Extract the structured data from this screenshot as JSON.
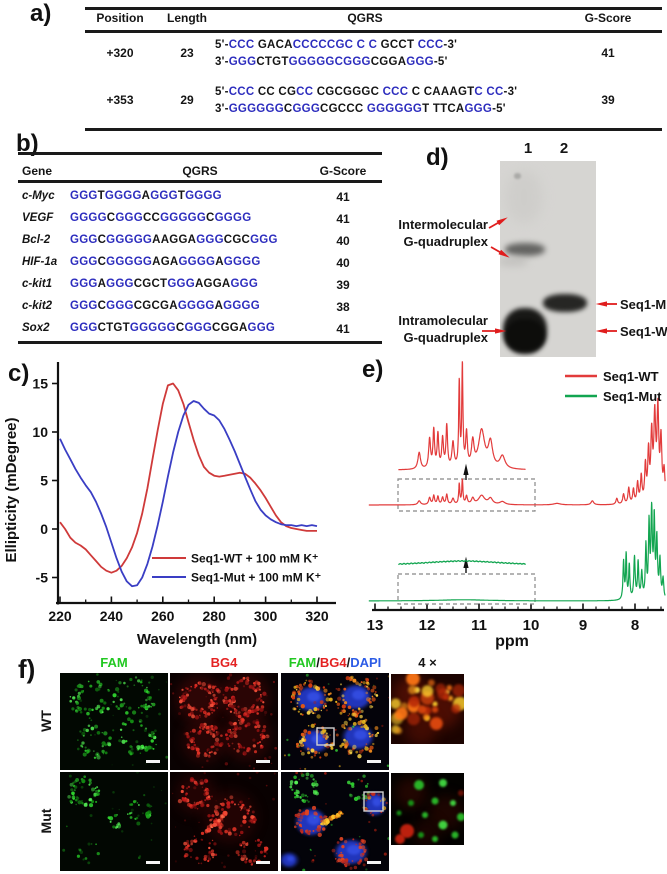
{
  "colors": {
    "seq_blue": "#2d2dbe",
    "text": "#151515",
    "cd_red": "#cf3a3a",
    "cd_blue": "#3a3ec4",
    "nmr_red": "#e23b3b",
    "nmr_green": "#12a550",
    "arrow_red": "#e01d1d",
    "fam_green": "#22c822",
    "bg4_red": "#e42222",
    "dapi_blue": "#2c5ce6"
  },
  "panel_a": {
    "label": "a)",
    "headers": [
      "Position",
      "Length",
      "QGRS",
      "G-Score"
    ],
    "rows": [
      {
        "position": "+320",
        "length": "23",
        "gscore": "41",
        "seq5": [
          [
            "5'-",
            "k"
          ],
          [
            "CCC",
            "b"
          ],
          [
            " GACA",
            "k"
          ],
          [
            "CCCCCGC C C",
            "b"
          ],
          [
            " GCCT ",
            "k"
          ],
          [
            "CCC",
            "b"
          ],
          [
            "-3'",
            "k"
          ]
        ],
        "seq3": [
          [
            "3'-",
            "k"
          ],
          [
            "GGG",
            "b"
          ],
          [
            "CTGT",
            "k"
          ],
          [
            "GGGGGCGGG",
            "b"
          ],
          [
            "CGGA",
            "k"
          ],
          [
            "GGG",
            "b"
          ],
          [
            "-5'",
            "k"
          ]
        ]
      },
      {
        "position": "+353",
        "length": "29",
        "gscore": "39",
        "seq5": [
          [
            "5'-",
            "k"
          ],
          [
            "CCC",
            "b"
          ],
          [
            " CC CG",
            "k"
          ],
          [
            "CC",
            "b"
          ],
          [
            " CGCGGGC ",
            "k"
          ],
          [
            "CCC",
            "b"
          ],
          [
            " C CAAAGT",
            "k"
          ],
          [
            "C CC",
            "b"
          ],
          [
            "-3'",
            "k"
          ]
        ],
        "seq3": [
          [
            "3'-",
            "k"
          ],
          [
            "GGGGGG",
            "b"
          ],
          [
            "C",
            "k"
          ],
          [
            "GGG",
            "b"
          ],
          [
            "CGCCC ",
            "k"
          ],
          [
            "GGGGGG",
            "b"
          ],
          [
            "T TTCA",
            "k"
          ],
          [
            "GGG",
            "b"
          ],
          [
            "-5'",
            "k"
          ]
        ]
      }
    ]
  },
  "panel_b": {
    "label": "b)",
    "headers": [
      "Gene",
      "QGRS",
      "G-Score"
    ],
    "rows": [
      {
        "gene": "c-Myc",
        "gscore": "41",
        "seq": [
          [
            "GGG",
            "b"
          ],
          [
            "T",
            "k"
          ],
          [
            "GGGG",
            "b"
          ],
          [
            "A",
            "k"
          ],
          [
            "GGG",
            "b"
          ],
          [
            "T",
            "k"
          ],
          [
            "GGGG",
            "b"
          ]
        ]
      },
      {
        "gene": "VEGF",
        "gscore": "41",
        "seq": [
          [
            "GGGG",
            "b"
          ],
          [
            "C",
            "k"
          ],
          [
            "GGG",
            "b"
          ],
          [
            "CC",
            "k"
          ],
          [
            "GGGGG",
            "b"
          ],
          [
            "C",
            "k"
          ],
          [
            "GGGG",
            "b"
          ]
        ]
      },
      {
        "gene": "Bcl-2",
        "gscore": "40",
        "seq": [
          [
            "GGG",
            "b"
          ],
          [
            "C",
            "k"
          ],
          [
            "GGGGG",
            "b"
          ],
          [
            "AAGGA",
            "k"
          ],
          [
            "GGG",
            "b"
          ],
          [
            "CGC",
            "k"
          ],
          [
            "GGG",
            "b"
          ]
        ]
      },
      {
        "gene": "HIF-1a",
        "gscore": "40",
        "seq": [
          [
            "GGG",
            "b"
          ],
          [
            "C",
            "k"
          ],
          [
            "GGGGG",
            "b"
          ],
          [
            "AGA",
            "k"
          ],
          [
            "GGGG",
            "b"
          ],
          [
            "A",
            "k"
          ],
          [
            "GGGG",
            "b"
          ]
        ]
      },
      {
        "gene": "c-kit1",
        "gscore": "39",
        "seq": [
          [
            "GGG",
            "b"
          ],
          [
            "A",
            "k"
          ],
          [
            "GGG",
            "b"
          ],
          [
            "CGCT",
            "k"
          ],
          [
            "GGG",
            "b"
          ],
          [
            "AGGA",
            "k"
          ],
          [
            "GGG",
            "b"
          ]
        ]
      },
      {
        "gene": "c-kit2",
        "gscore": "38",
        "seq": [
          [
            "GGG",
            "b"
          ],
          [
            "C",
            "k"
          ],
          [
            "GGG",
            "b"
          ],
          [
            "CGCGA",
            "k"
          ],
          [
            "GGGG",
            "b"
          ],
          [
            "A",
            "k"
          ],
          [
            "GGGG",
            "b"
          ]
        ]
      },
      {
        "gene": "Sox2",
        "gscore": "41",
        "seq": [
          [
            "GGG",
            "b"
          ],
          [
            "CTGT",
            "k"
          ],
          [
            "GGGGG",
            "b"
          ],
          [
            "C",
            "k"
          ],
          [
            "GGG",
            "b"
          ],
          [
            "CGGA",
            "k"
          ],
          [
            "GGG",
            "b"
          ]
        ]
      }
    ]
  },
  "panel_c": {
    "label": "c)"
  },
  "panel_d": {
    "label": "d)",
    "lanes": [
      "1",
      "2"
    ],
    "inter": [
      "Intermolecular",
      "G-quadruplex"
    ],
    "intra": [
      "Intramolecular",
      "G-quadruplex"
    ],
    "right": [
      "Seq1-Mut",
      "Seq1-WT"
    ]
  },
  "panel_e": {
    "label": "e)"
  },
  "panel_f": {
    "label": "f)",
    "fam": "FAM",
    "bg4": "BG4",
    "merge": [
      [
        "FAM",
        "#22c822"
      ],
      [
        "/",
        "#151515"
      ],
      [
        "BG4",
        "#e42222"
      ],
      [
        "/",
        "#151515"
      ],
      [
        "DAPI",
        "#2c5ce6"
      ]
    ],
    "zoom_label": "4 ×",
    "rows": [
      "WT",
      "Mut"
    ]
  },
  "chart_data": [
    {
      "type": "line",
      "panel": "c",
      "title": "",
      "xlabel": "Wavelength (nm)",
      "ylabel": "Ellipticity (mDegree)",
      "xlim": [
        220,
        320
      ],
      "ylim": [
        -7,
        16.5
      ],
      "xticks": [
        220,
        240,
        260,
        280,
        300,
        320
      ],
      "yticks": [
        -5,
        0,
        5,
        10,
        15
      ],
      "grid": false,
      "legend_position": "lower right",
      "series": [
        {
          "name": "Seq1-WT + 100 mM K⁺",
          "color": "#cf3a3a",
          "x": [
            220,
            222,
            224,
            226,
            228,
            230,
            232,
            234,
            236,
            238,
            240,
            242,
            244,
            246,
            248,
            250,
            252,
            254,
            256,
            258,
            260,
            262,
            264,
            266,
            268,
            270,
            272,
            274,
            276,
            278,
            280,
            282,
            284,
            286,
            288,
            290,
            292,
            294,
            296,
            298,
            300,
            302,
            304,
            306,
            308,
            310,
            312,
            314,
            316,
            318,
            320
          ],
          "y": [
            0.7,
            0.0,
            -0.9,
            -1.4,
            -1.7,
            -2.1,
            -2.7,
            -3.3,
            -3.9,
            -4.3,
            -4.5,
            -4.3,
            -3.8,
            -3.0,
            -1.9,
            -0.4,
            1.6,
            4.2,
            7.2,
            10.2,
            12.9,
            14.8,
            15.0,
            14.3,
            12.9,
            11.0,
            9.2,
            7.6,
            6.4,
            5.8,
            5.5,
            5.4,
            5.5,
            5.6,
            5.7,
            5.8,
            5.7,
            5.3,
            4.7,
            4.0,
            3.2,
            2.3,
            1.4,
            0.7,
            0.3,
            0.1,
            0.0,
            -0.1,
            -0.2,
            -0.2,
            -0.2
          ]
        },
        {
          "name": "Seq1-Mut + 100 mM K⁺",
          "color": "#3a3ec4",
          "x": [
            220,
            222,
            224,
            226,
            228,
            230,
            232,
            234,
            236,
            238,
            240,
            242,
            244,
            246,
            248,
            250,
            252,
            254,
            256,
            258,
            260,
            262,
            264,
            266,
            268,
            270,
            272,
            274,
            276,
            278,
            280,
            282,
            284,
            286,
            288,
            290,
            292,
            294,
            296,
            298,
            300,
            302,
            304,
            306,
            308,
            310,
            312,
            314,
            316,
            318,
            320
          ],
          "y": [
            9.3,
            8.2,
            7.2,
            6.2,
            5.3,
            4.5,
            3.8,
            2.8,
            1.6,
            0.2,
            -1.4,
            -3.0,
            -4.4,
            -5.4,
            -5.9,
            -5.8,
            -5.0,
            -3.6,
            -1.8,
            0.4,
            2.8,
            5.4,
            7.9,
            10.0,
            11.7,
            12.8,
            13.2,
            13.0,
            12.4,
            11.9,
            11.7,
            11.2,
            10.3,
            9.2,
            8.0,
            6.7,
            5.4,
            4.1,
            2.9,
            2.0,
            1.4,
            1.0,
            0.7,
            0.5,
            0.4,
            0.4,
            0.3,
            0.4,
            0.3,
            0.4,
            0.3
          ]
        }
      ]
    },
    {
      "type": "line",
      "panel": "e",
      "xlabel": "ppm",
      "xlim": [
        13,
        7.4
      ],
      "x_axis_reversed": true,
      "xticks": [
        13,
        12,
        11,
        10,
        9,
        8
      ],
      "legend_position": "upper right",
      "series": [
        {
          "name": "Seq1-WT",
          "color": "#e23b3b",
          "peaks_ppm_height_width": [
            [
              12.15,
              4,
              0.03
            ],
            [
              11.95,
              7,
              0.022
            ],
            [
              11.87,
              9,
              0.018
            ],
            [
              11.79,
              8,
              0.018
            ],
            [
              11.7,
              7,
              0.02
            ],
            [
              11.62,
              10,
              0.018
            ],
            [
              11.5,
              6,
              0.025
            ],
            [
              11.38,
              20,
              0.013
            ],
            [
              11.32,
              24,
              0.013
            ],
            [
              11.24,
              8,
              0.02
            ],
            [
              11.12,
              6,
              0.03
            ],
            [
              10.95,
              9,
              0.07
            ],
            [
              10.78,
              6,
              0.05
            ],
            [
              10.55,
              3,
              0.06
            ],
            [
              9.5,
              1.5,
              0.08
            ],
            [
              8.82,
              4,
              0.03
            ],
            [
              8.35,
              6,
              0.02
            ],
            [
              8.22,
              10,
              0.02
            ],
            [
              8.12,
              16,
              0.018
            ],
            [
              8.03,
              14,
              0.018
            ],
            [
              7.95,
              20,
              0.018
            ],
            [
              7.88,
              26,
              0.018
            ],
            [
              7.8,
              36,
              0.018
            ],
            [
              7.74,
              48,
              0.018
            ],
            [
              7.68,
              64,
              0.02
            ],
            [
              7.62,
              82,
              0.022
            ],
            [
              7.56,
              88,
              0.02
            ],
            [
              7.5,
              60,
              0.02
            ],
            [
              7.44,
              30,
              0.02
            ]
          ]
        },
        {
          "name": "Seq1-Mut",
          "color": "#12a550",
          "peaks_ppm_height_width": [
            [
              11.3,
              1.2,
              0.6
            ],
            [
              8.22,
              38,
              0.014
            ],
            [
              8.17,
              44,
              0.012
            ],
            [
              8.11,
              34,
              0.014
            ],
            [
              8.01,
              42,
              0.016
            ],
            [
              7.94,
              36,
              0.014
            ],
            [
              7.87,
              26,
              0.016
            ],
            [
              7.79,
              52,
              0.014
            ],
            [
              7.73,
              72,
              0.014
            ],
            [
              7.68,
              85,
              0.016
            ],
            [
              7.63,
              76,
              0.014
            ],
            [
              7.58,
              58,
              0.016
            ],
            [
              7.52,
              38,
              0.016
            ],
            [
              7.46,
              20,
              0.016
            ]
          ]
        }
      ],
      "insets": [
        {
          "series": "Seq1-WT",
          "range_ppm": [
            12.55,
            10.1
          ],
          "scale": 4.2,
          "note": "imino proton region magnified, dashed box with up arrow"
        },
        {
          "series": "Seq1-Mut",
          "range_ppm": [
            12.55,
            10.1
          ],
          "note": "flat broad hump - no imino peaks, dashed box with up arrow"
        }
      ]
    }
  ]
}
